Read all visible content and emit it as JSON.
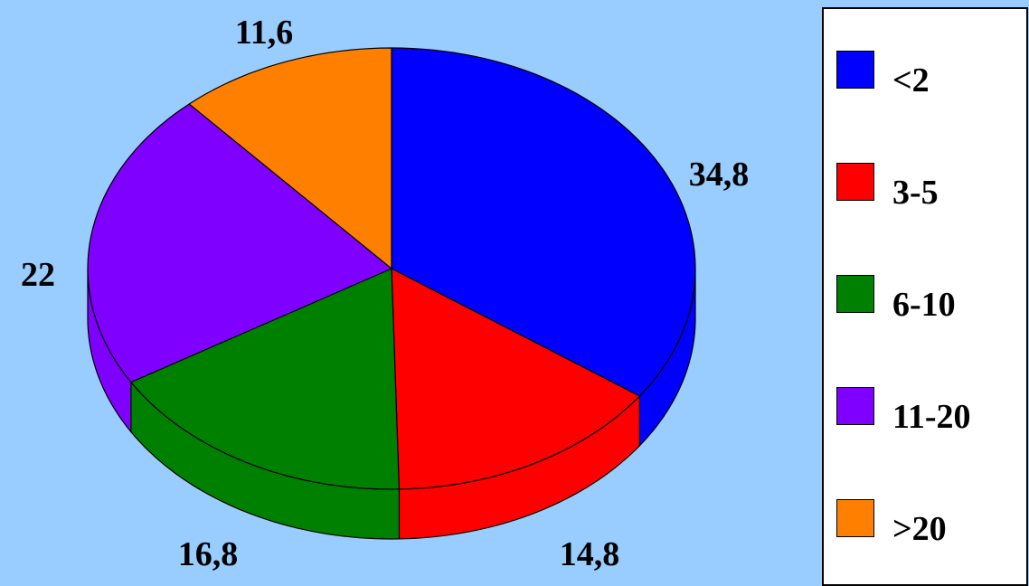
{
  "chart_data": {
    "type": "pie",
    "style": "3d",
    "categories": [
      "<2",
      "3-5",
      "6-10",
      "11-20",
      ">20"
    ],
    "values": [
      34.8,
      14.8,
      16.8,
      22,
      11.6
    ],
    "value_labels": [
      "34,8",
      "14,8",
      "16,8",
      "22",
      "11,6"
    ],
    "colors": [
      "#0000FF",
      "#FF0000",
      "#008000",
      "#8000FF",
      "#FF8000"
    ],
    "title": "",
    "legend_position": "right"
  }
}
